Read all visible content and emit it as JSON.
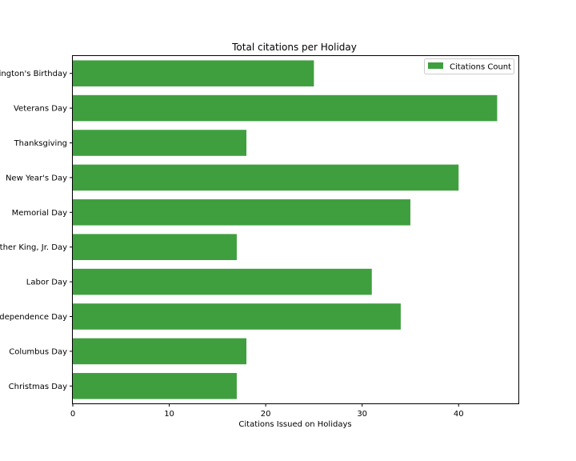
{
  "chart_data": {
    "type": "bar",
    "orientation": "horizontal",
    "title": "Total citations per Holiday",
    "xlabel": "Citations Issued on Holidays",
    "ylabel": "",
    "xlim": [
      0,
      46.2
    ],
    "xticks": [
      0,
      10,
      20,
      30,
      40
    ],
    "grid": false,
    "legend_position": "top-right",
    "bar_color": "#3f9f3f",
    "categories": [
      "Washington's Birthday",
      "Veterans Day",
      "Thanksgiving",
      "New Year's Day",
      "Memorial Day",
      "Martin Luther King, Jr. Day",
      "Labor Day",
      "Independence Day",
      "Columbus Day",
      "Christmas Day"
    ],
    "series": [
      {
        "name": "Citations Count",
        "values": [
          25,
          44,
          18,
          40,
          35,
          17,
          31,
          34,
          18,
          17
        ]
      }
    ]
  }
}
